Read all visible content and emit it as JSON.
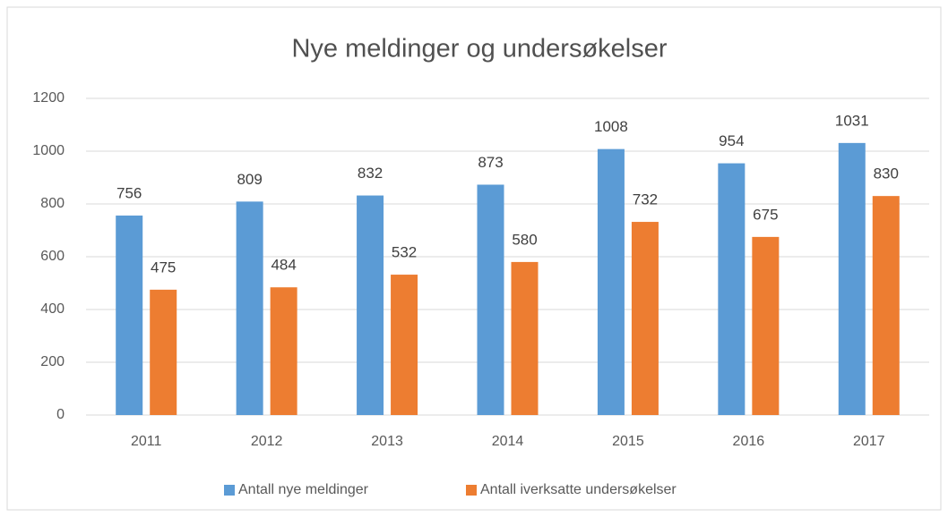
{
  "chart_data": {
    "type": "bar",
    "title": "Nye meldinger og undersøkelser",
    "categories": [
      "2011",
      "2012",
      "2013",
      "2014",
      "2015",
      "2016",
      "2017"
    ],
    "series": [
      {
        "name": "Antall nye meldinger",
        "color": "#5b9bd5",
        "values": [
          756,
          809,
          832,
          873,
          1008,
          954,
          1031
        ]
      },
      {
        "name": "Antall iverksatte undersøkelser",
        "color": "#ed7d31",
        "values": [
          475,
          484,
          532,
          580,
          732,
          675,
          830
        ]
      }
    ],
    "ylim": [
      0,
      1200
    ],
    "yticks": [
      0,
      200,
      400,
      600,
      800,
      1000,
      1200
    ],
    "grid": true,
    "legend": "bottom"
  }
}
